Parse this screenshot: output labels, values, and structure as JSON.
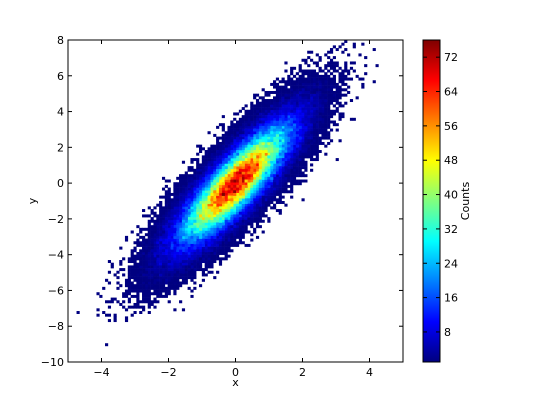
{
  "chart_data": {
    "type": "heatmap",
    "subtype": "2d-histogram-hexbin",
    "title": "",
    "xlabel": "x",
    "ylabel": "y",
    "xlim": [
      -5,
      5
    ],
    "ylim": [
      -10,
      8
    ],
    "x_ticks": [
      -4,
      -2,
      0,
      2,
      4
    ],
    "y_ticks": [
      -10,
      -8,
      -6,
      -4,
      -2,
      0,
      2,
      4,
      6,
      8
    ],
    "x_tick_labels": [
      "−4",
      "−2",
      "0",
      "2",
      "4"
    ],
    "y_tick_labels": [
      "−10",
      "−8",
      "−6",
      "−4",
      "−2",
      "0",
      "2",
      "4",
      "6",
      "8"
    ],
    "distribution": {
      "shape": "bivariate normal",
      "center": [
        0,
        0
      ],
      "x_std": 1,
      "y_std": 2,
      "correlation": 0.85
    },
    "colorbar": {
      "label": "Counts",
      "colormap": "jet",
      "range": [
        1,
        76
      ],
      "ticks": [
        8,
        16,
        24,
        32,
        40,
        48,
        56,
        64,
        72
      ],
      "tick_labels": [
        "8",
        "16",
        "24",
        "32",
        "40",
        "48",
        "56",
        "64",
        "72"
      ],
      "placement": "right"
    },
    "grid": false,
    "background_color": "#ffffff"
  }
}
